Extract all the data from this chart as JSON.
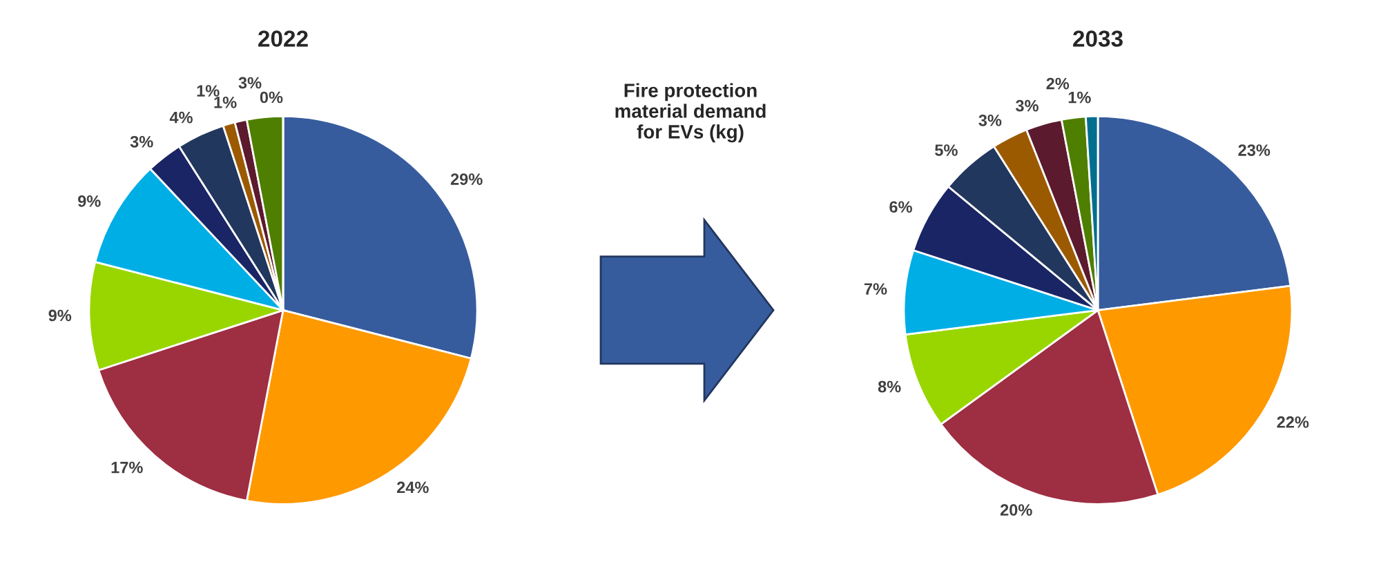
{
  "chart_data": [
    {
      "type": "pie",
      "title": "2022",
      "categories": [
        null,
        null,
        null,
        null,
        null,
        null,
        null,
        null,
        null,
        null,
        null
      ],
      "values": [
        29,
        24,
        17,
        9,
        9,
        3,
        4,
        1,
        1,
        3,
        0
      ],
      "value_labels": [
        "29%",
        "24%",
        "17%",
        "9%",
        "9%",
        "3%",
        "4%",
        "1%",
        "1%",
        "3%",
        "0%"
      ],
      "colors": [
        "#375c9e",
        "#ff9900",
        "#9e2e42",
        "#99d600",
        "#00aee6",
        "#1a2565",
        "#22375e",
        "#9c5a00",
        "#5c1a2e",
        "#4f7f00",
        "#006f8f"
      ],
      "annotations": [
        "Fire protection\nmaterial demand\nfor EVs (kg)"
      ]
    },
    {
      "type": "pie",
      "title": "2033",
      "categories": [
        null,
        null,
        null,
        null,
        null,
        null,
        null,
        null,
        null,
        null,
        null
      ],
      "values": [
        23,
        22,
        20,
        8,
        7,
        6,
        5,
        3,
        3,
        2,
        1
      ],
      "value_labels": [
        "23%",
        "22%",
        "20%",
        "8%",
        "7%",
        "6%",
        "5%",
        "3%",
        "3%",
        "2%",
        "1%"
      ],
      "colors": [
        "#375c9e",
        "#ff9900",
        "#9e2e42",
        "#99d600",
        "#00aee6",
        "#1a2565",
        "#22375e",
        "#9c5a00",
        "#5c1a2e",
        "#4f7f00",
        "#006f8f"
      ]
    }
  ]
}
